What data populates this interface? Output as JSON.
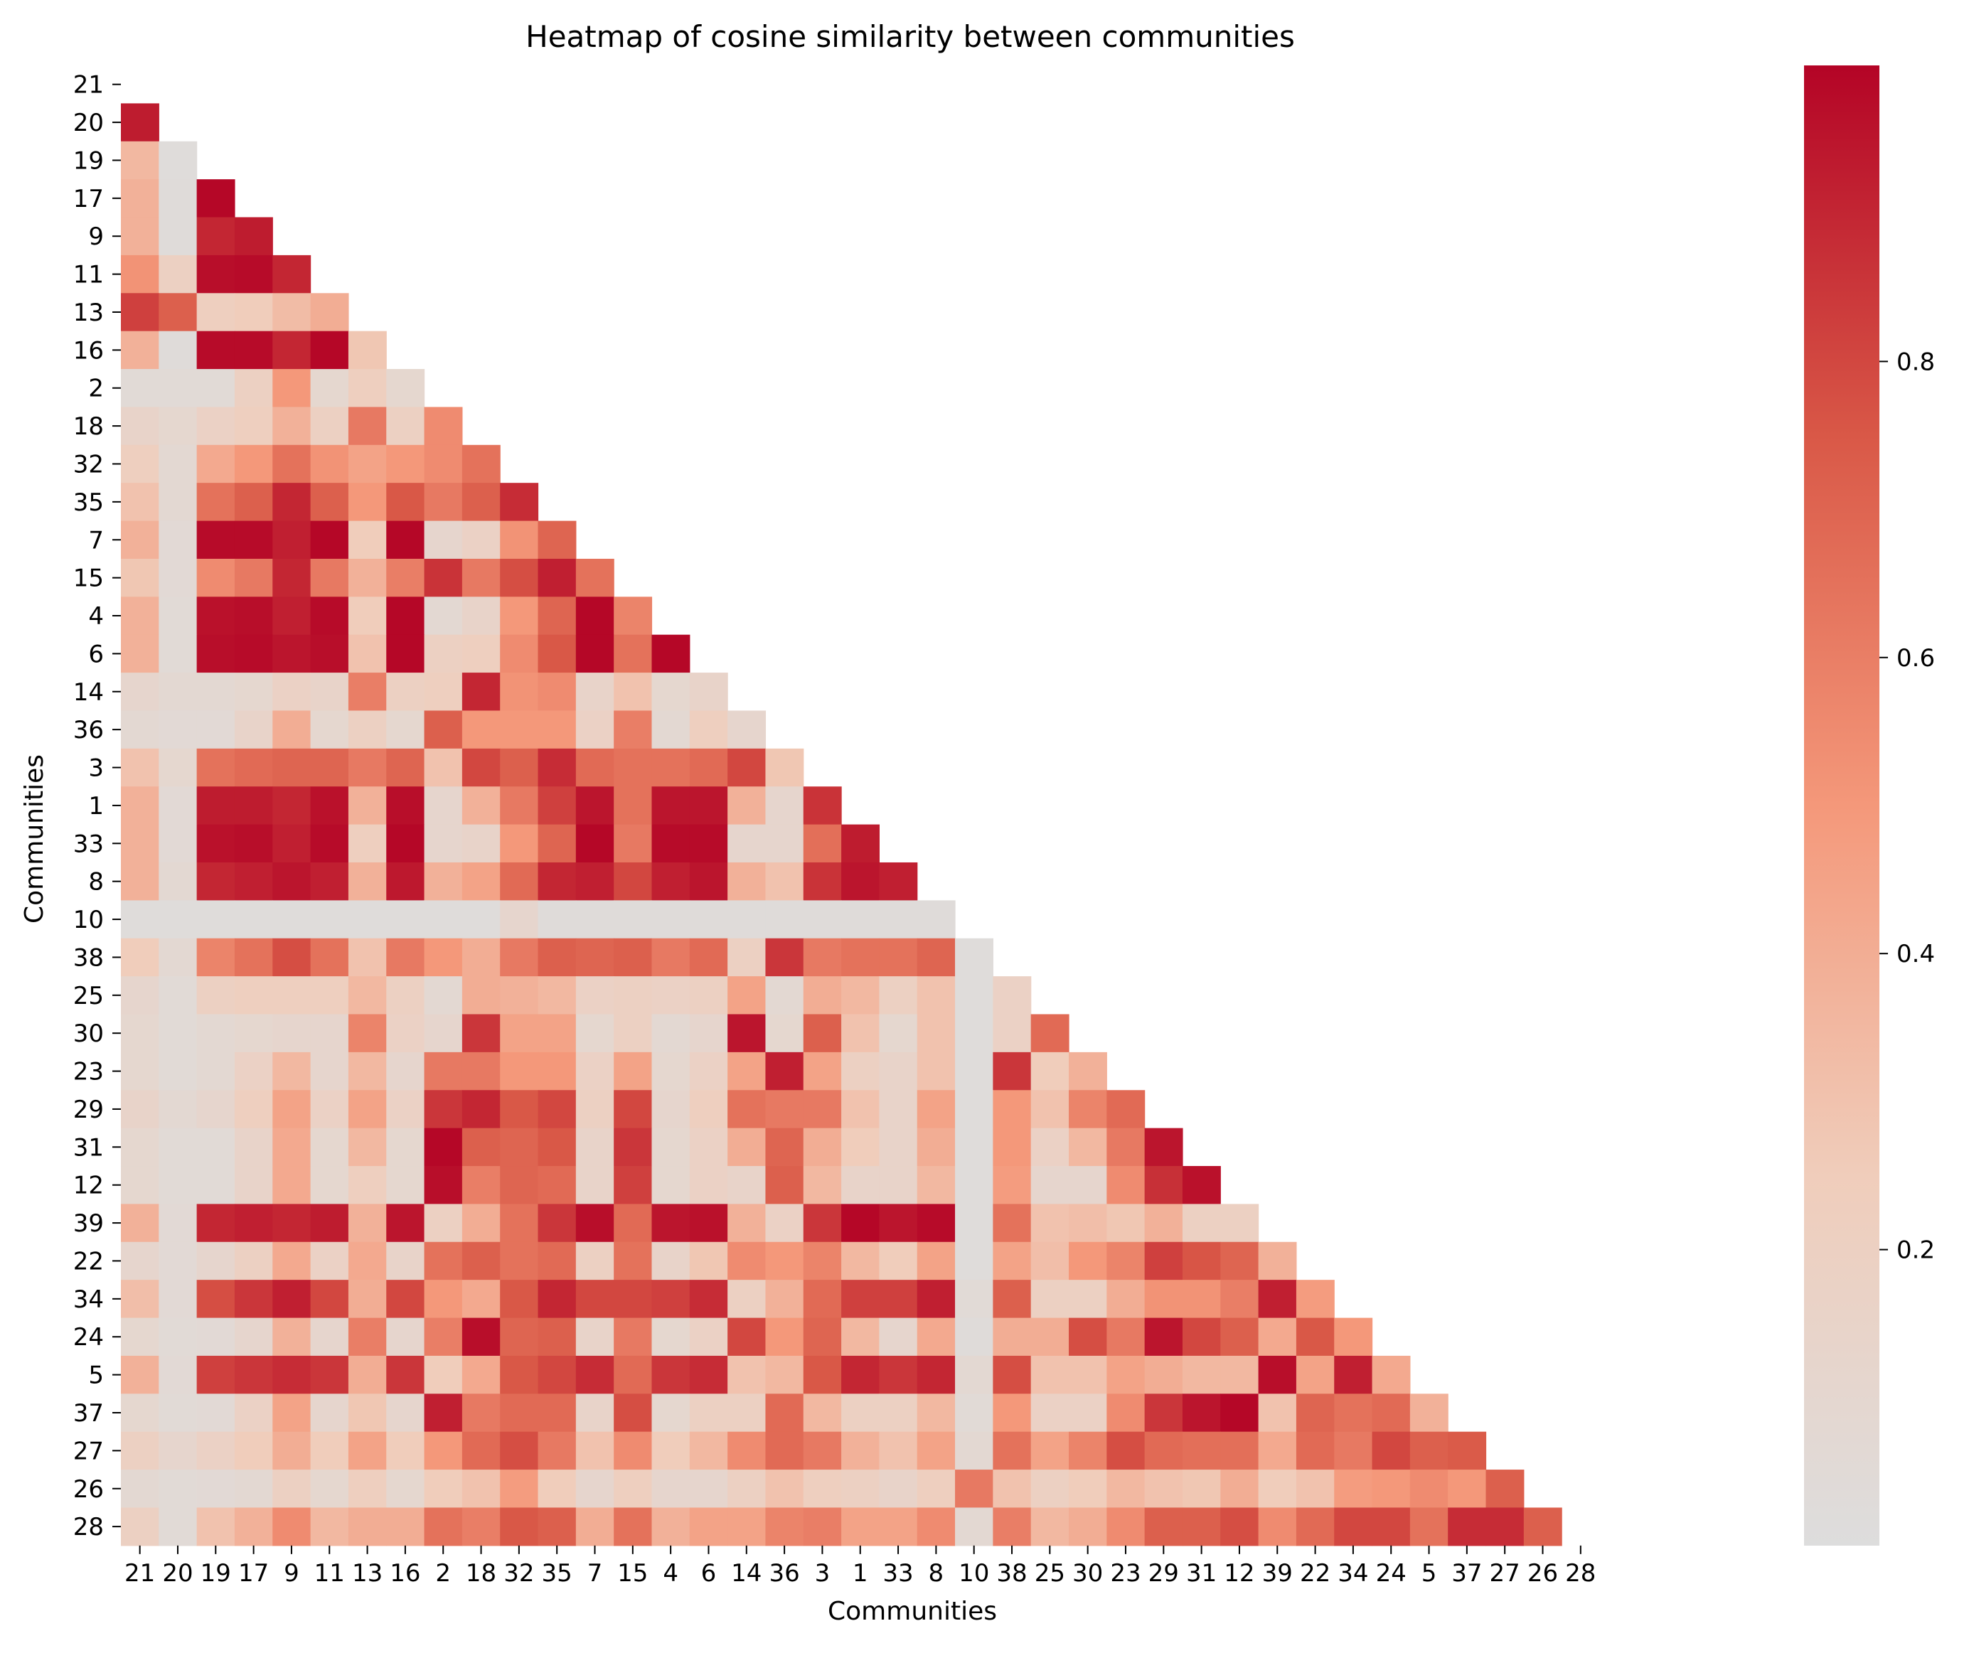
{
  "chart_data": {
    "type": "heatmap",
    "title": "Heatmap of cosine similarity between communities",
    "xlabel": "Communities",
    "ylabel": "Communities",
    "labels": [
      "21",
      "20",
      "19",
      "17",
      "9",
      "11",
      "13",
      "16",
      "2",
      "18",
      "32",
      "35",
      "7",
      "15",
      "4",
      "6",
      "14",
      "36",
      "3",
      "1",
      "33",
      "8",
      "10",
      "38",
      "25",
      "30",
      "23",
      "29",
      "31",
      "12",
      "39",
      "22",
      "34",
      "24",
      "5",
      "37",
      "27",
      "26",
      "28"
    ],
    "mask": "lower-triangle (cells above and on the diagonal are blank)",
    "colormap": "coolwarm (upper half: light gray to dark red)",
    "colorbar": {
      "ticks": [
        0.2,
        0.4,
        0.6,
        0.8
      ],
      "range": [
        0.0,
        1.0
      ]
    },
    "rows": [
      [],
      [
        0.93
      ],
      [
        0.35,
        0.02
      ],
      [
        0.38,
        0.03,
        0.99
      ],
      [
        0.38,
        0.03,
        0.9,
        0.93
      ],
      [
        0.52,
        0.2,
        0.97,
        0.98,
        0.9
      ],
      [
        0.82,
        0.72,
        0.22,
        0.25,
        0.33,
        0.4
      ],
      [
        0.38,
        0.03,
        0.98,
        0.98,
        0.9,
        0.99,
        0.28
      ],
      [
        0.05,
        0.05,
        0.05,
        0.2,
        0.5,
        0.1,
        0.22,
        0.1
      ],
      [
        0.15,
        0.1,
        0.18,
        0.22,
        0.38,
        0.2,
        0.62,
        0.2,
        0.55
      ],
      [
        0.22,
        0.08,
        0.42,
        0.5,
        0.65,
        0.52,
        0.45,
        0.5,
        0.55,
        0.65
      ],
      [
        0.3,
        0.08,
        0.65,
        0.72,
        0.9,
        0.72,
        0.5,
        0.75,
        0.62,
        0.72,
        0.88
      ],
      [
        0.38,
        0.06,
        0.98,
        0.98,
        0.92,
        0.99,
        0.25,
        0.99,
        0.12,
        0.18,
        0.52,
        0.7
      ],
      [
        0.28,
        0.06,
        0.55,
        0.62,
        0.9,
        0.62,
        0.38,
        0.6,
        0.86,
        0.62,
        0.78,
        0.92,
        0.65
      ],
      [
        0.38,
        0.05,
        0.96,
        0.97,
        0.92,
        0.98,
        0.25,
        0.99,
        0.08,
        0.15,
        0.5,
        0.7,
        0.99,
        0.58
      ],
      [
        0.38,
        0.05,
        0.97,
        0.98,
        0.95,
        0.97,
        0.3,
        0.99,
        0.2,
        0.22,
        0.55,
        0.75,
        0.99,
        0.65,
        0.99
      ],
      [
        0.12,
        0.08,
        0.08,
        0.1,
        0.18,
        0.15,
        0.6,
        0.2,
        0.22,
        0.9,
        0.52,
        0.55,
        0.15,
        0.3,
        0.1,
        0.15
      ],
      [
        0.08,
        0.06,
        0.06,
        0.15,
        0.4,
        0.1,
        0.2,
        0.1,
        0.72,
        0.5,
        0.5,
        0.5,
        0.18,
        0.6,
        0.08,
        0.22,
        0.12
      ],
      [
        0.3,
        0.1,
        0.65,
        0.68,
        0.7,
        0.7,
        0.62,
        0.7,
        0.3,
        0.8,
        0.72,
        0.88,
        0.68,
        0.65,
        0.65,
        0.68,
        0.8,
        0.28
      ],
      [
        0.38,
        0.06,
        0.93,
        0.93,
        0.9,
        0.96,
        0.38,
        0.97,
        0.12,
        0.38,
        0.62,
        0.82,
        0.95,
        0.65,
        0.95,
        0.95,
        0.38,
        0.12,
        0.86
      ],
      [
        0.38,
        0.06,
        0.96,
        0.97,
        0.92,
        0.98,
        0.22,
        0.99,
        0.12,
        0.15,
        0.5,
        0.7,
        0.99,
        0.62,
        0.98,
        0.98,
        0.12,
        0.12,
        0.66,
        0.93
      ],
      [
        0.38,
        0.08,
        0.9,
        0.92,
        0.95,
        0.92,
        0.38,
        0.94,
        0.38,
        0.45,
        0.68,
        0.9,
        0.92,
        0.8,
        0.92,
        0.95,
        0.38,
        0.3,
        0.86,
        0.95,
        0.92
      ],
      [
        0.02,
        0.02,
        0.02,
        0.02,
        0.02,
        0.02,
        0.02,
        0.02,
        0.02,
        0.02,
        0.12,
        0.03,
        0.03,
        0.03,
        0.03,
        0.03,
        0.03,
        0.03,
        0.03,
        0.03,
        0.03,
        0.03
      ],
      [
        0.25,
        0.08,
        0.58,
        0.65,
        0.78,
        0.65,
        0.3,
        0.62,
        0.5,
        0.4,
        0.62,
        0.72,
        0.7,
        0.72,
        0.62,
        0.68,
        0.2,
        0.85,
        0.62,
        0.65,
        0.65,
        0.7,
        0.02
      ],
      [
        0.12,
        0.05,
        0.2,
        0.22,
        0.22,
        0.22,
        0.35,
        0.2,
        0.08,
        0.4,
        0.38,
        0.35,
        0.18,
        0.2,
        0.18,
        0.2,
        0.45,
        0.08,
        0.4,
        0.35,
        0.2,
        0.3,
        0.02,
        0.18
      ],
      [
        0.1,
        0.05,
        0.08,
        0.1,
        0.12,
        0.12,
        0.58,
        0.18,
        0.12,
        0.85,
        0.45,
        0.45,
        0.1,
        0.2,
        0.08,
        0.12,
        0.95,
        0.1,
        0.72,
        0.3,
        0.1,
        0.3,
        0.02,
        0.18,
        0.68
      ],
      [
        0.1,
        0.05,
        0.08,
        0.18,
        0.35,
        0.12,
        0.35,
        0.12,
        0.62,
        0.62,
        0.5,
        0.5,
        0.18,
        0.45,
        0.1,
        0.18,
        0.45,
        0.92,
        0.45,
        0.2,
        0.15,
        0.3,
        0.02,
        0.85,
        0.25,
        0.38
      ],
      [
        0.15,
        0.08,
        0.12,
        0.22,
        0.45,
        0.18,
        0.45,
        0.18,
        0.85,
        0.9,
        0.75,
        0.8,
        0.2,
        0.8,
        0.12,
        0.22,
        0.65,
        0.62,
        0.62,
        0.3,
        0.15,
        0.45,
        0.02,
        0.5,
        0.3,
        0.58,
        0.68
      ],
      [
        0.1,
        0.05,
        0.05,
        0.15,
        0.42,
        0.1,
        0.35,
        0.1,
        0.99,
        0.72,
        0.7,
        0.75,
        0.15,
        0.85,
        0.1,
        0.18,
        0.4,
        0.7,
        0.4,
        0.25,
        0.15,
        0.4,
        0.02,
        0.5,
        0.18,
        0.35,
        0.62,
        0.95
      ],
      [
        0.1,
        0.05,
        0.05,
        0.15,
        0.42,
        0.1,
        0.22,
        0.1,
        0.97,
        0.6,
        0.7,
        0.68,
        0.15,
        0.82,
        0.1,
        0.18,
        0.15,
        0.72,
        0.35,
        0.15,
        0.15,
        0.35,
        0.02,
        0.48,
        0.12,
        0.12,
        0.55,
        0.87,
        0.96
      ],
      [
        0.38,
        0.06,
        0.9,
        0.92,
        0.9,
        0.93,
        0.38,
        0.95,
        0.2,
        0.4,
        0.65,
        0.85,
        0.97,
        0.68,
        0.95,
        0.96,
        0.38,
        0.18,
        0.85,
        0.99,
        0.95,
        0.98,
        0.02,
        0.65,
        0.3,
        0.32,
        0.28,
        0.38,
        0.2,
        0.2
      ],
      [
        0.12,
        0.06,
        0.12,
        0.2,
        0.42,
        0.18,
        0.42,
        0.15,
        0.65,
        0.72,
        0.65,
        0.68,
        0.2,
        0.65,
        0.15,
        0.28,
        0.55,
        0.5,
        0.58,
        0.35,
        0.25,
        0.45,
        0.02,
        0.45,
        0.32,
        0.5,
        0.58,
        0.82,
        0.76,
        0.7,
        0.38
      ],
      [
        0.32,
        0.06,
        0.78,
        0.85,
        0.92,
        0.8,
        0.4,
        0.8,
        0.5,
        0.42,
        0.75,
        0.9,
        0.8,
        0.8,
        0.82,
        0.88,
        0.2,
        0.38,
        0.68,
        0.82,
        0.82,
        0.92,
        0.05,
        0.72,
        0.2,
        0.2,
        0.4,
        0.52,
        0.52,
        0.6,
        0.92,
        0.48
      ],
      [
        0.1,
        0.05,
        0.06,
        0.12,
        0.38,
        0.12,
        0.6,
        0.12,
        0.6,
        0.97,
        0.7,
        0.72,
        0.15,
        0.62,
        0.1,
        0.18,
        0.8,
        0.5,
        0.7,
        0.35,
        0.12,
        0.42,
        0.03,
        0.4,
        0.4,
        0.78,
        0.62,
        0.95,
        0.8,
        0.72,
        0.42,
        0.75,
        0.5
      ],
      [
        0.38,
        0.06,
        0.82,
        0.85,
        0.88,
        0.85,
        0.4,
        0.85,
        0.25,
        0.42,
        0.75,
        0.8,
        0.88,
        0.68,
        0.85,
        0.88,
        0.3,
        0.35,
        0.75,
        0.9,
        0.85,
        0.9,
        0.08,
        0.78,
        0.3,
        0.3,
        0.45,
        0.4,
        0.35,
        0.35,
        0.97,
        0.45,
        0.92,
        0.42
      ],
      [
        0.1,
        0.05,
        0.06,
        0.18,
        0.45,
        0.12,
        0.28,
        0.12,
        0.92,
        0.62,
        0.68,
        0.68,
        0.15,
        0.78,
        0.1,
        0.2,
        0.2,
        0.68,
        0.35,
        0.2,
        0.2,
        0.35,
        0.05,
        0.5,
        0.18,
        0.18,
        0.55,
        0.85,
        0.95,
        0.99,
        0.3,
        0.7,
        0.65,
        0.68,
        0.38
      ],
      [
        0.2,
        0.12,
        0.18,
        0.25,
        0.4,
        0.25,
        0.45,
        0.25,
        0.5,
        0.68,
        0.78,
        0.62,
        0.3,
        0.55,
        0.25,
        0.35,
        0.55,
        0.68,
        0.62,
        0.38,
        0.3,
        0.45,
        0.08,
        0.65,
        0.45,
        0.58,
        0.78,
        0.68,
        0.66,
        0.66,
        0.42,
        0.68,
        0.62,
        0.8,
        0.72,
        0.74
      ],
      [
        0.08,
        0.05,
        0.06,
        0.08,
        0.2,
        0.1,
        0.22,
        0.1,
        0.25,
        0.3,
        0.48,
        0.25,
        0.12,
        0.22,
        0.12,
        0.12,
        0.2,
        0.3,
        0.22,
        0.2,
        0.15,
        0.22,
        0.62,
        0.3,
        0.2,
        0.25,
        0.35,
        0.3,
        0.28,
        0.4,
        0.25,
        0.3,
        0.48,
        0.5,
        0.55,
        0.5,
        0.72
      ],
      [
        0.2,
        0.05,
        0.3,
        0.38,
        0.55,
        0.35,
        0.4,
        0.4,
        0.65,
        0.6,
        0.75,
        0.72,
        0.4,
        0.65,
        0.38,
        0.45,
        0.45,
        0.58,
        0.6,
        0.45,
        0.45,
        0.55,
        0.08,
        0.6,
        0.35,
        0.4,
        0.55,
        0.72,
        0.72,
        0.78,
        0.55,
        0.68,
        0.8,
        0.8,
        0.65,
        0.88,
        0.88,
        0.72
      ]
    ]
  }
}
